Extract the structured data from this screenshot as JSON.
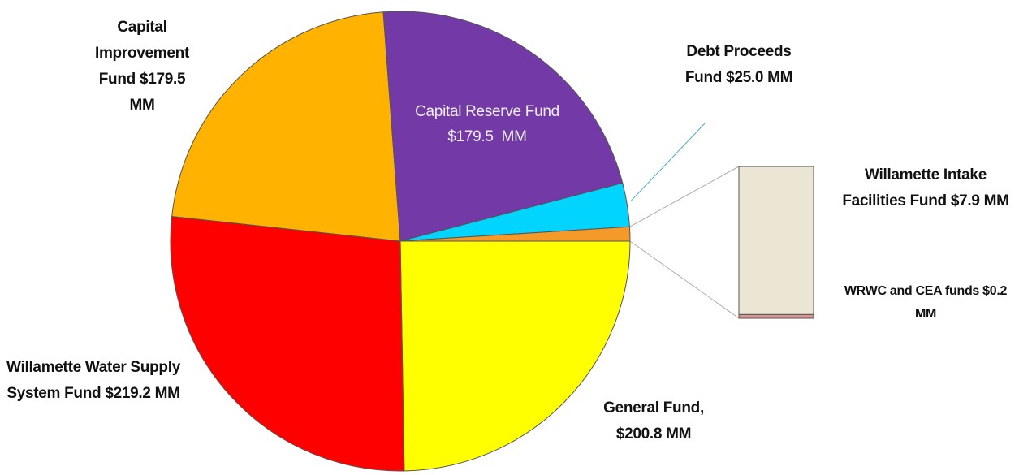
{
  "chart_data": {
    "type": "pie",
    "categories": [
      "General Fund,",
      "Willamette Water Supply System Fund",
      "Capital Improvement Fund",
      "Capital Reserve Fund",
      "Debt Proceeds Fund"
    ],
    "values": [
      200.8,
      219.2,
      179.5,
      179.5,
      25.0
    ],
    "value_labels": [
      "$200.8 MM",
      "$219.2 MM",
      "$179.5 MM",
      "$179.5  MM",
      "$25.0 MM"
    ],
    "colors": [
      "#ffff00",
      "#ff0000",
      "#ffb300",
      "#7339a6",
      "#00d4ff"
    ],
    "bar": {
      "categories": [
        "Willamette Intake Facilities Fund",
        "WRWC and CEA funds"
      ],
      "values": [
        7.9,
        0.2
      ],
      "value_labels": [
        "$7.9 MM",
        "$0.2 MM"
      ],
      "colors": [
        "#ebe5d3",
        "#d99694"
      ],
      "slice_color": "#f39a2b"
    }
  }
}
